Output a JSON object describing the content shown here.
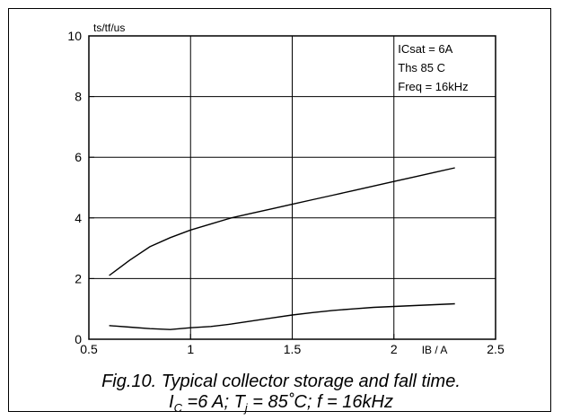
{
  "chart_data": {
    "type": "line",
    "title": "",
    "ylabel": "ts/tf/us",
    "xlabel": "IB / A",
    "xlim": [
      0.5,
      2.5
    ],
    "ylim": [
      0,
      10
    ],
    "x_ticks": [
      "0.5",
      "1",
      "1.5",
      "2",
      "2.5"
    ],
    "y_ticks": [
      "0",
      "2",
      "4",
      "6",
      "8",
      "10"
    ],
    "grid": true,
    "annotations": [
      "ICsat = 6A",
      "Ths 85 C",
      "Freq = 16kHz"
    ],
    "series": [
      {
        "name": "",
        "x": [
          0.6,
          0.7,
          0.8,
          0.9,
          1.0,
          1.1,
          1.2,
          1.3,
          1.4,
          1.5,
          1.6,
          1.7,
          1.8,
          1.9,
          2.0,
          2.1,
          2.2,
          2.3
        ],
        "values": [
          2.1,
          2.6,
          3.05,
          3.35,
          3.6,
          3.8,
          4.0,
          4.15,
          4.3,
          4.45,
          4.6,
          4.75,
          4.9,
          5.05,
          5.2,
          5.35,
          5.5,
          5.65
        ]
      },
      {
        "name": "",
        "x": [
          0.6,
          0.7,
          0.8,
          0.9,
          1.0,
          1.1,
          1.2,
          1.3,
          1.4,
          1.5,
          1.6,
          1.7,
          1.8,
          1.9,
          2.0,
          2.1,
          2.2,
          2.3
        ],
        "values": [
          0.45,
          0.4,
          0.35,
          0.32,
          0.38,
          0.42,
          0.5,
          0.6,
          0.7,
          0.8,
          0.88,
          0.95,
          1.0,
          1.05,
          1.08,
          1.11,
          1.14,
          1.17
        ]
      }
    ]
  },
  "caption": {
    "line1": "Fig.10.   Typical collector storage and fall time.",
    "ic_main": "I",
    "ic_sub": "C",
    "ic_rest": " =6 A; T",
    "tj_sub": "j",
    "tj_rest": " = 85˚C; f = 16kHz"
  }
}
